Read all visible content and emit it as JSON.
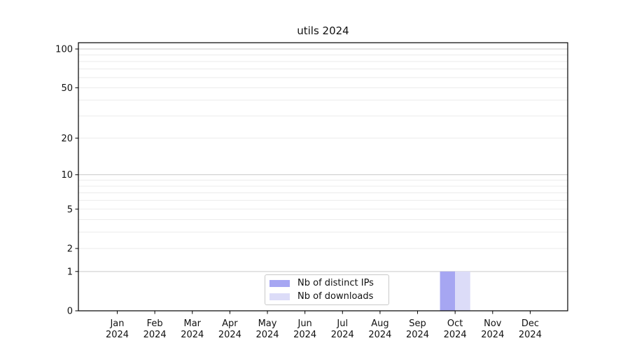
{
  "chart_data": {
    "type": "bar",
    "title": "utils 2024",
    "categories": [
      "Jan 2024",
      "Feb 2024",
      "Mar 2024",
      "Apr 2024",
      "May 2024",
      "Jun 2024",
      "Jul 2024",
      "Aug 2024",
      "Sep 2024",
      "Oct 2024",
      "Nov 2024",
      "Dec 2024"
    ],
    "series": [
      {
        "name": "Nb of distinct IPs",
        "color": "#a6a6f2",
        "values": [
          0,
          0,
          0,
          0,
          0,
          0,
          0,
          0,
          0,
          1,
          0,
          0
        ]
      },
      {
        "name": "Nb of downloads",
        "color": "#dcdcf8",
        "values": [
          0,
          0,
          0,
          0,
          0,
          0,
          0,
          0,
          0,
          1,
          0,
          0
        ]
      }
    ],
    "xlabel": "",
    "ylabel": "",
    "yscale": "log1p",
    "ylim": [
      0,
      112
    ],
    "y_major_ticks": [
      0,
      1,
      2,
      5,
      10,
      20,
      50,
      100
    ],
    "y_minor_ticks": [
      3,
      4,
      6,
      7,
      8,
      9,
      30,
      40,
      60,
      70,
      80,
      90
    ],
    "emphasized_gridlines": [
      1,
      10,
      100
    ],
    "grid": true,
    "legend_position": "lower center"
  },
  "colors": {
    "axis": "#000000",
    "text": "#111111",
    "grid_major": "#c9c9c9",
    "grid_minor": "#ebebeb",
    "legend_border": "#c9c9c9",
    "background": "#ffffff"
  }
}
